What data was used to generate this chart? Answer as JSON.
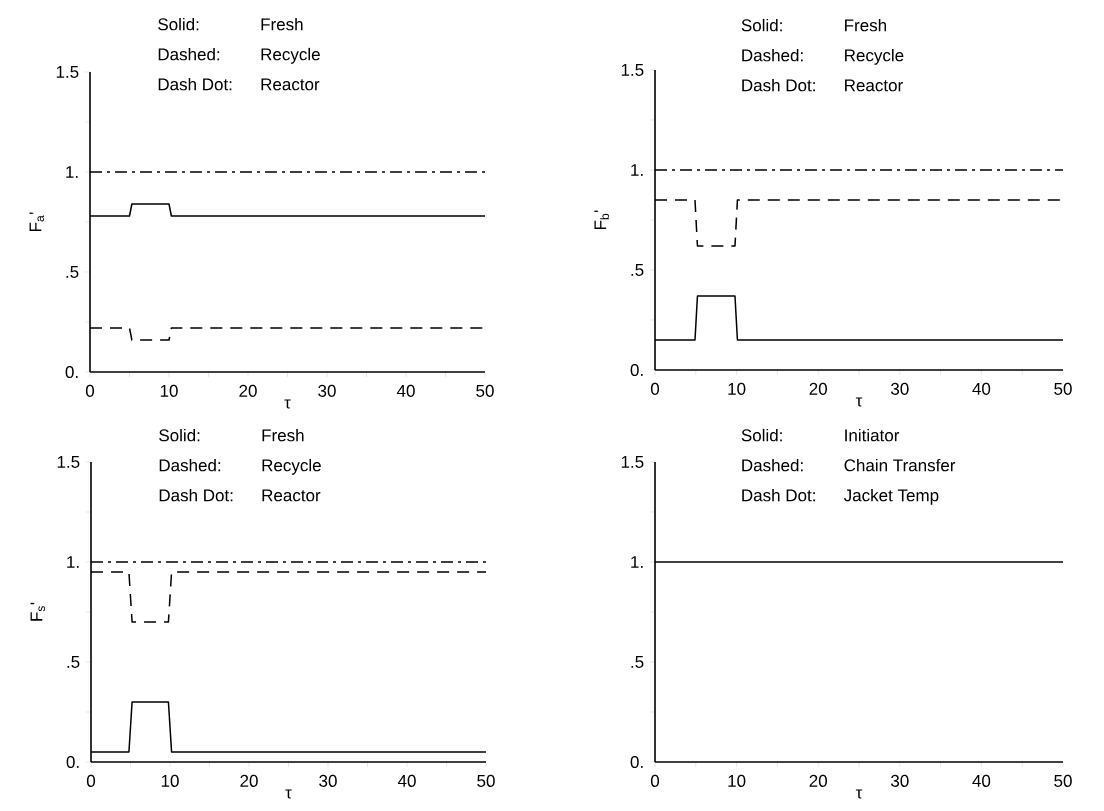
{
  "chart_data": [
    {
      "type": "line",
      "xlabel": "τ",
      "ylabel": "F$_{a}$'",
      "annotations": [
        "Solid:",
        "Fresh",
        "Dashed:",
        "Recycle",
        "Dash Dot:",
        "Reactor"
      ],
      "xlim": [
        0,
        50
      ],
      "ylim": [
        0,
        1.5
      ],
      "xticks": [
        0,
        {
          "value": 5,
          "label": null
        },
        10,
        {
          "value": 15,
          "label": null
        },
        20,
        {
          "value": 25,
          "label": null
        },
        30,
        {
          "value": 35,
          "label": null
        },
        40,
        {
          "value": 45,
          "label": null
        },
        50
      ],
      "yticks": [
        {
          "value": 0,
          "label": "0."
        },
        {
          "value": 0.25,
          "label": null
        },
        {
          "value": 0.5,
          "label": ".5"
        },
        {
          "value": 0.75,
          "label": null
        },
        {
          "value": 1,
          "label": "1."
        },
        {
          "value": 1.25,
          "label": null
        },
        {
          "value": 1.5,
          "label": "1.5"
        }
      ],
      "series": [
        {
          "color": "#000000",
          "line_style": "solid",
          "x": [
            0,
            5,
            5.3,
            10,
            10.3,
            50
          ],
          "values": [
            0.78,
            0.78,
            0.84,
            0.84,
            0.78,
            0.78
          ]
        },
        {
          "color": "#000000",
          "line_style": "dashed",
          "x": [
            0,
            5,
            5.3,
            10,
            10.3,
            50
          ],
          "values": [
            0.22,
            0.22,
            0.16,
            0.16,
            0.22,
            0.22
          ]
        },
        {
          "color": "#000000",
          "line_style": "dashdot",
          "x": [
            0,
            50
          ],
          "values": [
            1,
            1
          ]
        }
      ]
    },
    {
      "type": "line",
      "xlabel": "τ",
      "ylabel": "F$_{b}$'",
      "annotations": [
        "Solid:",
        "Fresh",
        "Dashed:",
        "Recycle",
        "Dash Dot:",
        "Reactor"
      ],
      "xlim": [
        0,
        50
      ],
      "ylim": [
        0,
        1.5
      ],
      "xticks": [
        0,
        {
          "value": 5,
          "label": null
        },
        10,
        {
          "value": 15,
          "label": null
        },
        20,
        {
          "value": 25,
          "label": null
        },
        30,
        {
          "value": 35,
          "label": null
        },
        40,
        {
          "value": 45,
          "label": null
        },
        50
      ],
      "yticks": [
        {
          "value": 0,
          "label": "0."
        },
        {
          "value": 0.25,
          "label": null
        },
        {
          "value": 0.5,
          "label": ".5"
        },
        {
          "value": 0.75,
          "label": null
        },
        {
          "value": 1,
          "label": "1."
        },
        {
          "value": 1.25,
          "label": null
        },
        {
          "value": 1.5,
          "label": "1.5"
        }
      ],
      "series": [
        {
          "color": "#000000",
          "line_style": "solid",
          "x": [
            0,
            4.9,
            5.2,
            9.8,
            10.1,
            50
          ],
          "values": [
            0.15,
            0.15,
            0.37,
            0.37,
            0.15,
            0.15
          ]
        },
        {
          "color": "#000000",
          "line_style": "dashed",
          "x": [
            0,
            4.9,
            5.2,
            9.8,
            10.1,
            50
          ],
          "values": [
            0.85,
            0.85,
            0.62,
            0.62,
            0.85,
            0.85
          ]
        },
        {
          "color": "#000000",
          "line_style": "dashdot",
          "x": [
            0,
            50
          ],
          "values": [
            1,
            1
          ]
        }
      ]
    },
    {
      "type": "line",
      "xlabel": "τ",
      "ylabel": "F$_{s}$'",
      "annotations": [
        "Solid:",
        "Fresh",
        "Dashed:",
        "Recycle",
        "Dash Dot:",
        "Reactor"
      ],
      "xlim": [
        0,
        50
      ],
      "ylim": [
        0,
        1.5
      ],
      "xticks": [
        0,
        {
          "value": 5,
          "label": null
        },
        10,
        {
          "value": 15,
          "label": null
        },
        20,
        {
          "value": 25,
          "label": null
        },
        30,
        {
          "value": 35,
          "label": null
        },
        40,
        {
          "value": 45,
          "label": null
        },
        50
      ],
      "yticks": [
        {
          "value": 0,
          "label": "0."
        },
        {
          "value": 0.25,
          "label": null
        },
        {
          "value": 0.5,
          "label": ".5"
        },
        {
          "value": 0.75,
          "label": null
        },
        {
          "value": 1,
          "label": "1."
        },
        {
          "value": 1.25,
          "label": null
        },
        {
          "value": 1.5,
          "label": "1.5"
        }
      ],
      "series": [
        {
          "color": "#000000",
          "line_style": "solid",
          "x": [
            0,
            4.8,
            5.2,
            9.8,
            10.2,
            50
          ],
          "values": [
            0.05,
            0.05,
            0.3,
            0.3,
            0.05,
            0.05
          ]
        },
        {
          "color": "#000000",
          "line_style": "dashed",
          "x": [
            0,
            4.8,
            5.2,
            9.8,
            10.2,
            50
          ],
          "values": [
            0.95,
            0.95,
            0.7,
            0.7,
            0.95,
            0.95
          ]
        },
        {
          "color": "#000000",
          "line_style": "dashdot",
          "x": [
            0,
            50
          ],
          "values": [
            1,
            1
          ]
        }
      ]
    },
    {
      "type": "line",
      "xlabel": "τ",
      "annotations": [
        "Solid:",
        "Initiator",
        "Dashed:",
        "Chain Transfer",
        "Dash Dot:",
        "Jacket Temp"
      ],
      "xlim": [
        0,
        50
      ],
      "ylim": [
        0,
        1.5
      ],
      "xticks": [
        0,
        {
          "value": 5,
          "label": null
        },
        10,
        {
          "value": 15,
          "label": null
        },
        20,
        {
          "value": 25,
          "label": null
        },
        30,
        {
          "value": 35,
          "label": null
        },
        40,
        {
          "value": 45,
          "label": null
        },
        50
      ],
      "yticks": [
        {
          "value": 0,
          "label": "0."
        },
        {
          "value": 0.25,
          "label": null
        },
        {
          "value": 0.5,
          "label": ".5"
        },
        {
          "value": 0.75,
          "label": null
        },
        {
          "value": 1,
          "label": "1."
        },
        {
          "value": 1.25,
          "label": null
        },
        {
          "value": 1.5,
          "label": "1.5"
        }
      ],
      "series": [
        {
          "color": "#000000",
          "line_style": "solid",
          "x": [
            0,
            50
          ],
          "values": [
            1,
            1
          ]
        }
      ]
    }
  ]
}
